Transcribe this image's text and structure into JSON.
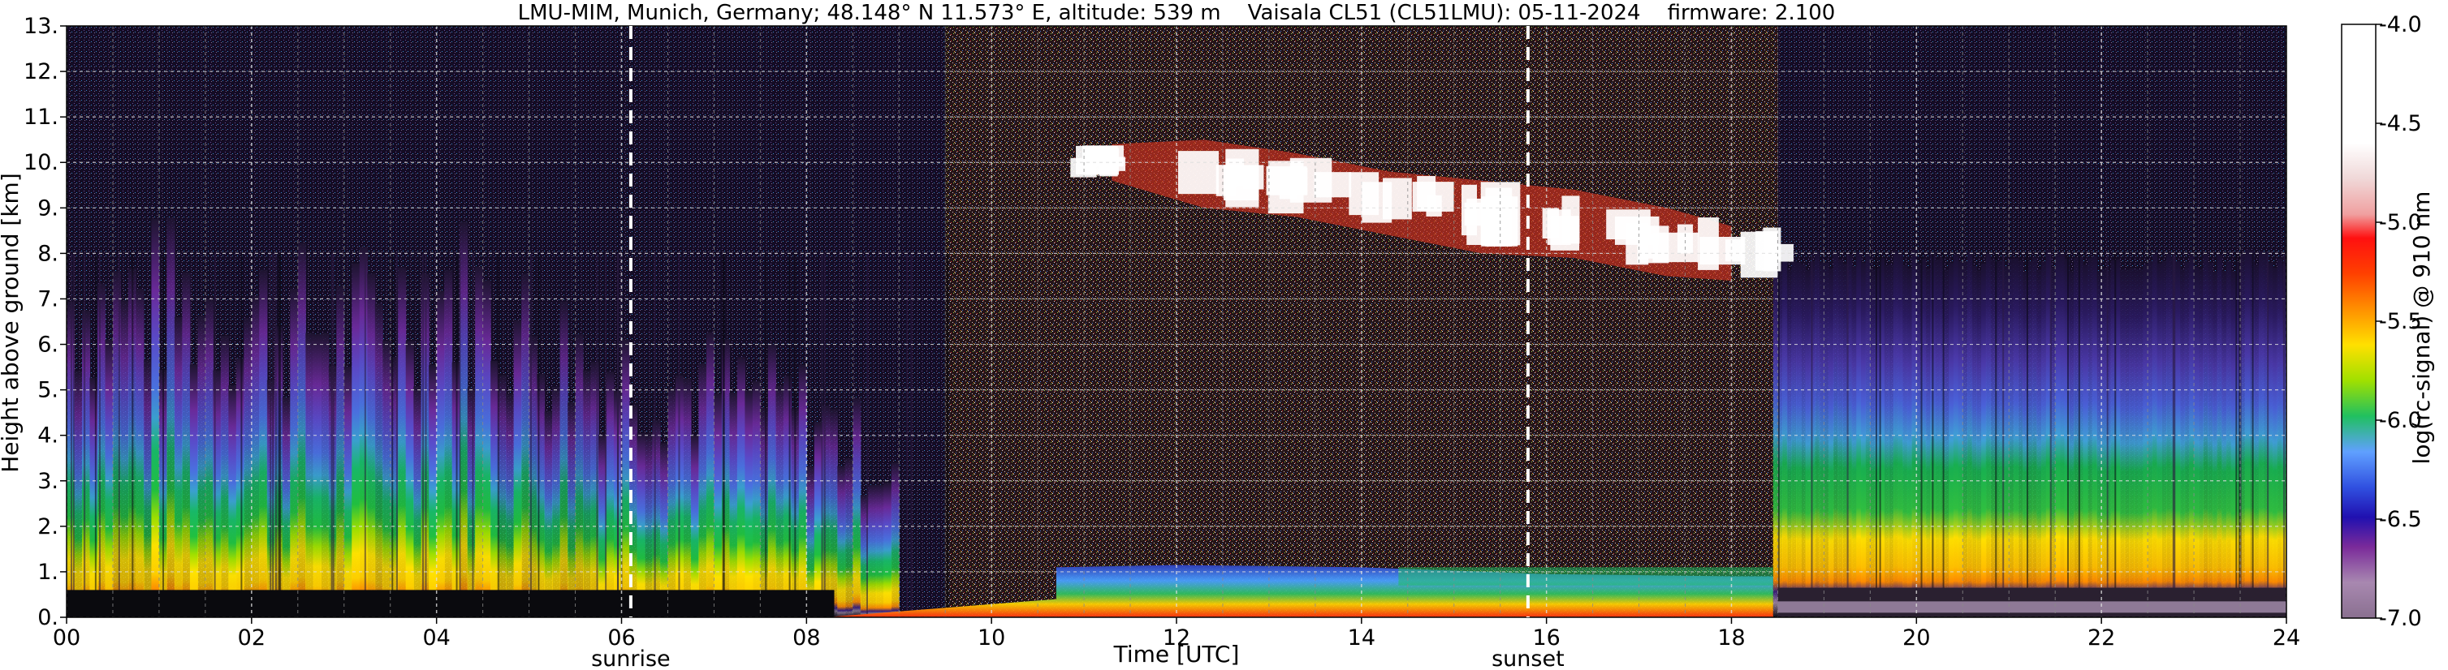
{
  "chart_data": {
    "type": "heatmap",
    "title": "LMU-MIM, Munich, Germany; 48.148° N 11.573° E, altitude: 539 m    Vaisala CL51 (CL51LMU): 05-11-2024    firmware: 2.100",
    "xlabel": "Time [UTC]",
    "ylabel": "Height above ground [km]",
    "xlim": [
      0,
      24
    ],
    "ylim": [
      0,
      13
    ],
    "x_ticks": [
      "00",
      "02",
      "04",
      "06",
      "08",
      "10",
      "12",
      "14",
      "16",
      "18",
      "20",
      "22",
      "24"
    ],
    "y_ticks": [
      "0.",
      "1.",
      "2.",
      "3.",
      "4.",
      "5.",
      "6.",
      "7.",
      "8.",
      "9.",
      "10.",
      "11.",
      "12.",
      "13."
    ],
    "grid": true,
    "annotations": [
      {
        "label": "sunrise",
        "x": 6.1
      },
      {
        "label": "sunset",
        "x": 15.8
      }
    ],
    "colorbar": {
      "label": "log(rc-signal) @ 910 nm",
      "range": [
        -7.0,
        -4.0
      ],
      "ticks": [
        "-4.0",
        "-4.5",
        "-5.0",
        "-5.5",
        "-6.0",
        "-6.5",
        "-7.0"
      ]
    },
    "background_layer_top_km": [
      {
        "x": 0,
        "y": 9.0
      },
      {
        "x": 1,
        "y": 9.0
      },
      {
        "x": 2,
        "y": 8.6
      },
      {
        "x": 3,
        "y": 8.2
      },
      {
        "x": 4,
        "y": 9.5
      },
      {
        "x": 5,
        "y": 8.0
      },
      {
        "x": 6,
        "y": 7.0
      },
      {
        "x": 7,
        "y": 6.5
      },
      {
        "x": 8,
        "y": 5.8
      },
      {
        "x": 9,
        "y": 4.0
      }
    ],
    "boundary_layer_top_km": [
      {
        "x": 10.7,
        "y": 1.1
      },
      {
        "x": 12,
        "y": 1.15
      },
      {
        "x": 14,
        "y": 1.1
      },
      {
        "x": 16,
        "y": 0.95
      },
      {
        "x": 18,
        "y": 0.9
      }
    ],
    "cloud_layer_km": [
      {
        "x": 11.3,
        "y_bottom": 9.6,
        "y_top": 10.4
      },
      {
        "x": 12.3,
        "y_bottom": 9.0,
        "y_top": 10.5
      },
      {
        "x": 13.3,
        "y_bottom": 8.8,
        "y_top": 10.2
      },
      {
        "x": 14.3,
        "y_bottom": 8.4,
        "y_top": 9.8
      },
      {
        "x": 15.3,
        "y_bottom": 8.0,
        "y_top": 9.6
      },
      {
        "x": 16.3,
        "y_bottom": 7.9,
        "y_top": 9.4
      },
      {
        "x": 17.3,
        "y_bottom": 7.5,
        "y_top": 9.0
      },
      {
        "x": 18.0,
        "y_bottom": 7.4,
        "y_top": 8.6
      }
    ],
    "colors": {
      "noise": "#1b1030",
      "cloud": "#ffffff",
      "high_signal": "#ffd000",
      "mid_signal": "#20c040",
      "low_signal": "#4060e0",
      "very_low_signal": "#6a2a9a"
    }
  }
}
